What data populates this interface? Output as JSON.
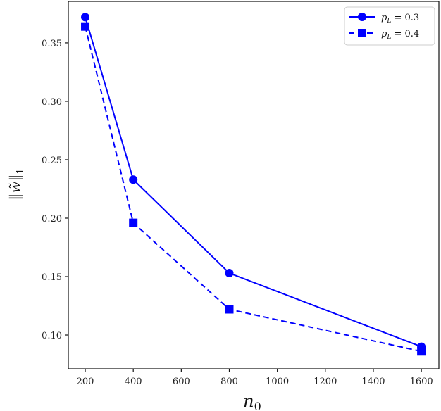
{
  "chart_data": {
    "type": "line",
    "title": "",
    "xlabel": "n_0",
    "ylabel": "||w̃||_1",
    "xlim": [
      129.5,
      1673
    ],
    "ylim": [
      0.0711,
      0.3855
    ],
    "grid": false,
    "legend_position": "upper right",
    "x": [
      200,
      400,
      800,
      1600
    ],
    "xticks": [
      200,
      400,
      600,
      800,
      1000,
      1200,
      1400,
      1600
    ],
    "yticks": [
      0.1,
      0.15,
      0.2,
      0.25,
      0.3,
      0.35
    ],
    "xtick_labels": [
      "200",
      "400",
      "600",
      "800",
      "1000",
      "1200",
      "1400",
      "1600"
    ],
    "ytick_labels": [
      "0.10",
      "0.15",
      "0.20",
      "0.25",
      "0.30",
      "0.35"
    ],
    "series": [
      {
        "name": "p_L = 0.3",
        "legend_label_base": "p",
        "legend_label_sub": "L",
        "legend_label_rest": " = 0.3",
        "values": [
          0.372,
          0.233,
          0.153,
          0.09
        ],
        "color": "#0000ff",
        "linestyle": "solid",
        "marker": "circle"
      },
      {
        "name": "p_L = 0.4",
        "legend_label_base": "p",
        "legend_label_sub": "L",
        "legend_label_rest": " = 0.4",
        "values": [
          0.364,
          0.196,
          0.122,
          0.086
        ],
        "color": "#0000ff",
        "linestyle": "dashed",
        "marker": "square"
      }
    ]
  },
  "axis_text": {
    "xlabel_base": "n",
    "xlabel_sub": "0",
    "ylabel_text": "‖w̃‖",
    "ylabel_sub": "1"
  }
}
